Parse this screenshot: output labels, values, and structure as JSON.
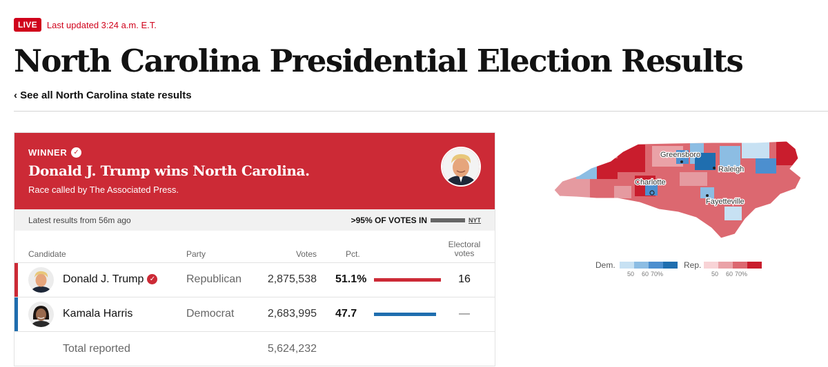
{
  "header": {
    "live_badge": "LIVE",
    "last_updated": "Last updated 3:24 a.m. E.T.",
    "title": "North Carolina Presidential Election Results",
    "back_link": "‹ See all North Carolina state results"
  },
  "winner": {
    "label": "WINNER",
    "headline": "Donald J. Trump wins North Carolina.",
    "subtext": "Race called by The Associated Press.",
    "banner_color": "#cc2a36"
  },
  "status": {
    "latest": "Latest results from 56m ago",
    "votes_in": ">95% OF VOTES IN",
    "source": "NYT"
  },
  "table": {
    "headers": {
      "candidate": "Candidate",
      "party": "Party",
      "votes": "Votes",
      "pct": "Pct.",
      "electoral_line1": "Electoral",
      "electoral_line2": "votes"
    },
    "rows": [
      {
        "name": "Donald J. Trump",
        "party": "Republican",
        "votes": "2,875,538",
        "pct": "51.1%",
        "pct_value": 51.1,
        "electoral": "16",
        "color": "#cc2a36",
        "winner": true
      },
      {
        "name": "Kamala Harris",
        "party": "Democrat",
        "votes": "2,683,995",
        "pct": "47.7",
        "pct_value": 47.7,
        "electoral": "—",
        "color": "#1f6eaf",
        "winner": false
      }
    ],
    "total_label": "Total reported",
    "total_votes": "5,624,232"
  },
  "map": {
    "cities": [
      "Greensboro",
      "Raleigh",
      "Charlotte",
      "Fayetteville"
    ]
  },
  "legend": {
    "dem_label": "Dem.",
    "rep_label": "Rep.",
    "dem_colors": [
      "#c7e1f3",
      "#8cbde3",
      "#4c8fcf",
      "#1f6eaf"
    ],
    "rep_colors": [
      "#f8d3d6",
      "#eaa2a7",
      "#dc6870",
      "#c91d2d"
    ],
    "ticks": [
      "50",
      "60",
      "70%"
    ]
  }
}
